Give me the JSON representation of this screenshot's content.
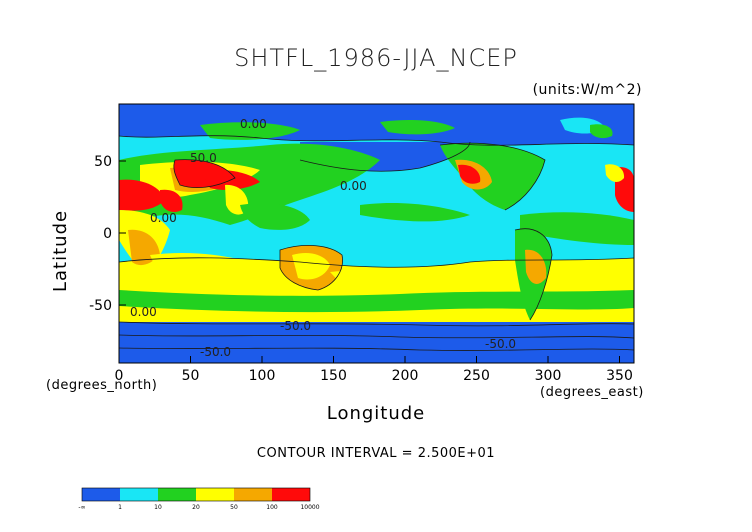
{
  "title": "SHTFL_1986-JJA_NCEP",
  "units": "(units:W/m^2)",
  "y_axis_label": "Latitude",
  "x_axis_label": "Longitude",
  "y_axis_unit": "(degrees_north)",
  "x_axis_unit": "(degrees_east)",
  "contour_interval_text": "CONTOUR INTERVAL = 2.500E+01",
  "x_ticks": [
    "0",
    "50",
    "100",
    "150",
    "200",
    "250",
    "300",
    "350"
  ],
  "y_ticks": [
    "50",
    "0",
    "-50"
  ],
  "contour_labels": [
    "0.00",
    "0.00",
    "0.00",
    "-50.0",
    "-50.0",
    "-50.0",
    "0.00",
    "50.0"
  ],
  "colorbar": {
    "labels": [
      "-∞",
      "1",
      "10",
      "20",
      "50",
      "100",
      "10000"
    ],
    "colors": [
      "#1d5bea",
      "#19e6f5",
      "#22d120",
      "#ffff00",
      "#f5a800",
      "#ff0a0a"
    ]
  },
  "map_colors": {
    "ocean_low": "#1d5bea",
    "ocean_mid": "#19e6f5",
    "green": "#22d120",
    "yellow": "#ffff00",
    "orange": "#f5a800",
    "red": "#ff0a0a",
    "contour_line": "#1a1a1a"
  },
  "chart_data": {
    "type": "heatmap",
    "title": "SHTFL_1986-JJA_NCEP",
    "xlabel": "Longitude",
    "ylabel": "Latitude",
    "xlim": [
      0,
      360
    ],
    "ylim": [
      -90,
      90
    ],
    "x_tick_values": [
      0,
      50,
      100,
      150,
      200,
      250,
      300,
      350
    ],
    "y_tick_values": [
      50,
      0,
      -50
    ],
    "color_levels": [
      "-∞",
      "1",
      "10",
      "20",
      "50",
      "100",
      "10000"
    ],
    "contour_interval": "2.500E+01"
  }
}
